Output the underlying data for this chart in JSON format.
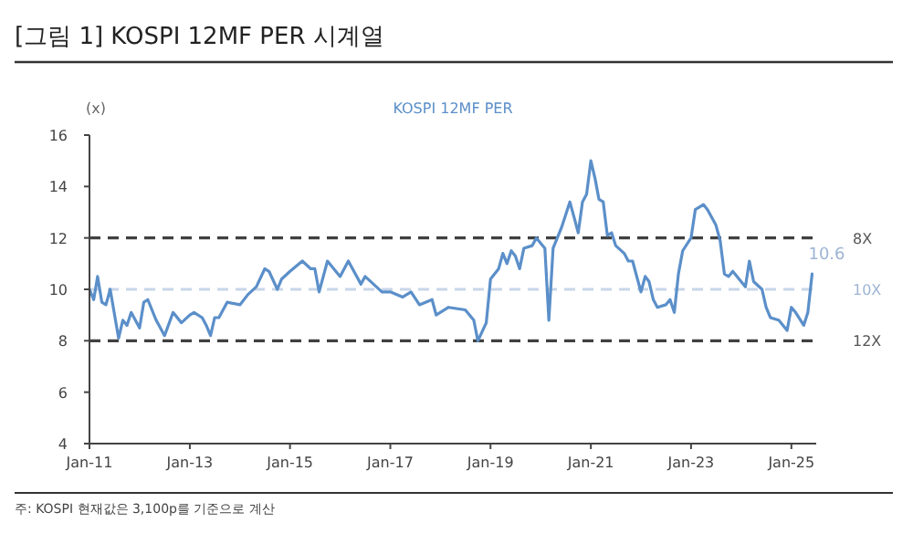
{
  "chart_data": {
    "type": "line",
    "title": "[그림 1] KOSPI 12MF PER 시계열",
    "ylabel": "(x)",
    "annotations": [
      {
        "text": "10.6",
        "x": "2025-06",
        "y": 10.6
      },
      "주: KOSPI 현재값은 3,100p를 기준으로 계산"
    ],
    "legend": "top",
    "grid": false,
    "marker": "none",
    "line_style": "solid",
    "xlim": [
      "2011-01",
      "2025-07"
    ],
    "xticks": [
      {
        "value": "2011-01",
        "label": "Jan-11"
      },
      {
        "value": "2013-01",
        "label": "Jan-13"
      },
      {
        "value": "2015-01",
        "label": "Jan-15"
      },
      {
        "value": "2017-01",
        "label": "Jan-17"
      },
      {
        "value": "2019-01",
        "label": "Jan-19"
      },
      {
        "value": "2021-01",
        "label": "Jan-21"
      },
      {
        "value": "2023-01",
        "label": "Jan-23"
      },
      {
        "value": "2025-01",
        "label": "Jan-25"
      }
    ],
    "ylim": [
      4,
      16
    ],
    "yticks": [
      4,
      6,
      8,
      10,
      12,
      14,
      16
    ],
    "ref_lines": [
      {
        "axis": "y",
        "value": 12,
        "label": "8X",
        "color": "#404040",
        "line_style": "dashed"
      },
      {
        "axis": "y",
        "value": 10,
        "label": "10X",
        "color": "#c8d6e8",
        "line_style": "dashed"
      },
      {
        "axis": "y",
        "value": 8,
        "label": "12X",
        "color": "#404040",
        "line_style": "dashed"
      }
    ],
    "x": [
      "2011-01",
      "2011-02",
      "2011-03",
      "2011-04",
      "2011-05",
      "2011-06",
      "2011-08",
      "2011-09",
      "2011-10",
      "2011-11",
      "2012-01",
      "2012-02",
      "2012-03",
      "2012-05",
      "2012-07",
      "2012-09",
      "2012-11",
      "2013-01",
      "2013-02",
      "2013-04",
      "2013-05",
      "2013-06",
      "2013-07",
      "2013-08",
      "2013-10",
      "2014-01",
      "2014-03",
      "2014-05",
      "2014-07",
      "2014-08",
      "2014-10",
      "2014-11",
      "2015-01",
      "2015-04",
      "2015-06",
      "2015-07",
      "2015-08",
      "2015-10",
      "2016-01",
      "2016-03",
      "2016-06",
      "2016-07",
      "2016-09",
      "2016-11",
      "2017-01",
      "2017-04",
      "2017-06",
      "2017-08",
      "2017-11",
      "2017-12",
      "2018-03",
      "2018-07",
      "2018-09",
      "2018-10",
      "2018-12",
      "2019-01",
      "2019-03",
      "2019-04",
      "2019-05",
      "2019-06",
      "2019-07",
      "2019-08",
      "2019-09",
      "2019-11",
      "2019-12",
      "2020-02",
      "2020-03",
      "2020-04",
      "2020-06",
      "2020-08",
      "2020-09",
      "2020-10",
      "2020-11",
      "2020-12",
      "2021-01",
      "2021-02",
      "2021-03",
      "2021-04",
      "2021-05",
      "2021-06",
      "2021-07",
      "2021-09",
      "2021-10",
      "2021-11",
      "2022-01",
      "2022-02",
      "2022-03",
      "2022-04",
      "2022-05",
      "2022-07",
      "2022-08",
      "2022-09",
      "2022-10",
      "2022-11",
      "2023-01",
      "2023-02",
      "2023-04",
      "2023-05",
      "2023-07",
      "2023-08",
      "2023-09",
      "2023-10",
      "2023-11",
      "2024-02",
      "2024-03",
      "2024-04",
      "2024-06",
      "2024-07",
      "2024-08",
      "2024-10",
      "2024-12",
      "2025-01",
      "2025-02",
      "2025-04",
      "2025-05",
      "2025-06"
    ],
    "series": [
      {
        "name": "KOSPI 12MF PER",
        "color": "#5b8fc9",
        "values": [
          10.0,
          9.6,
          10.5,
          9.5,
          9.4,
          10.0,
          8.1,
          8.8,
          8.6,
          9.1,
          8.5,
          9.5,
          9.6,
          8.8,
          8.2,
          9.1,
          8.7,
          9.0,
          9.1,
          8.9,
          8.6,
          8.2,
          8.9,
          8.9,
          9.5,
          9.4,
          9.8,
          10.1,
          10.8,
          10.7,
          10.0,
          10.4,
          10.7,
          11.1,
          10.8,
          10.8,
          9.9,
          11.1,
          10.5,
          11.1,
          10.2,
          10.5,
          10.2,
          9.9,
          9.9,
          9.7,
          9.9,
          9.4,
          9.6,
          9.0,
          9.3,
          9.2,
          8.8,
          8.0,
          8.7,
          10.4,
          10.8,
          11.4,
          11.0,
          11.5,
          11.3,
          10.8,
          11.6,
          11.7,
          12.0,
          11.6,
          8.8,
          11.6,
          12.4,
          13.4,
          12.8,
          12.2,
          13.4,
          13.7,
          15.0,
          14.3,
          13.5,
          13.4,
          12.1,
          12.2,
          11.7,
          11.4,
          11.1,
          11.1,
          9.9,
          10.5,
          10.3,
          9.6,
          9.3,
          9.4,
          9.6,
          9.1,
          10.6,
          11.5,
          12.0,
          13.1,
          13.3,
          13.1,
          12.5,
          11.9,
          10.6,
          10.5,
          10.7,
          10.1,
          11.1,
          10.3,
          10.0,
          9.3,
          8.9,
          8.8,
          8.4,
          9.3,
          9.1,
          8.6,
          9.1,
          10.6
        ]
      }
    ]
  }
}
